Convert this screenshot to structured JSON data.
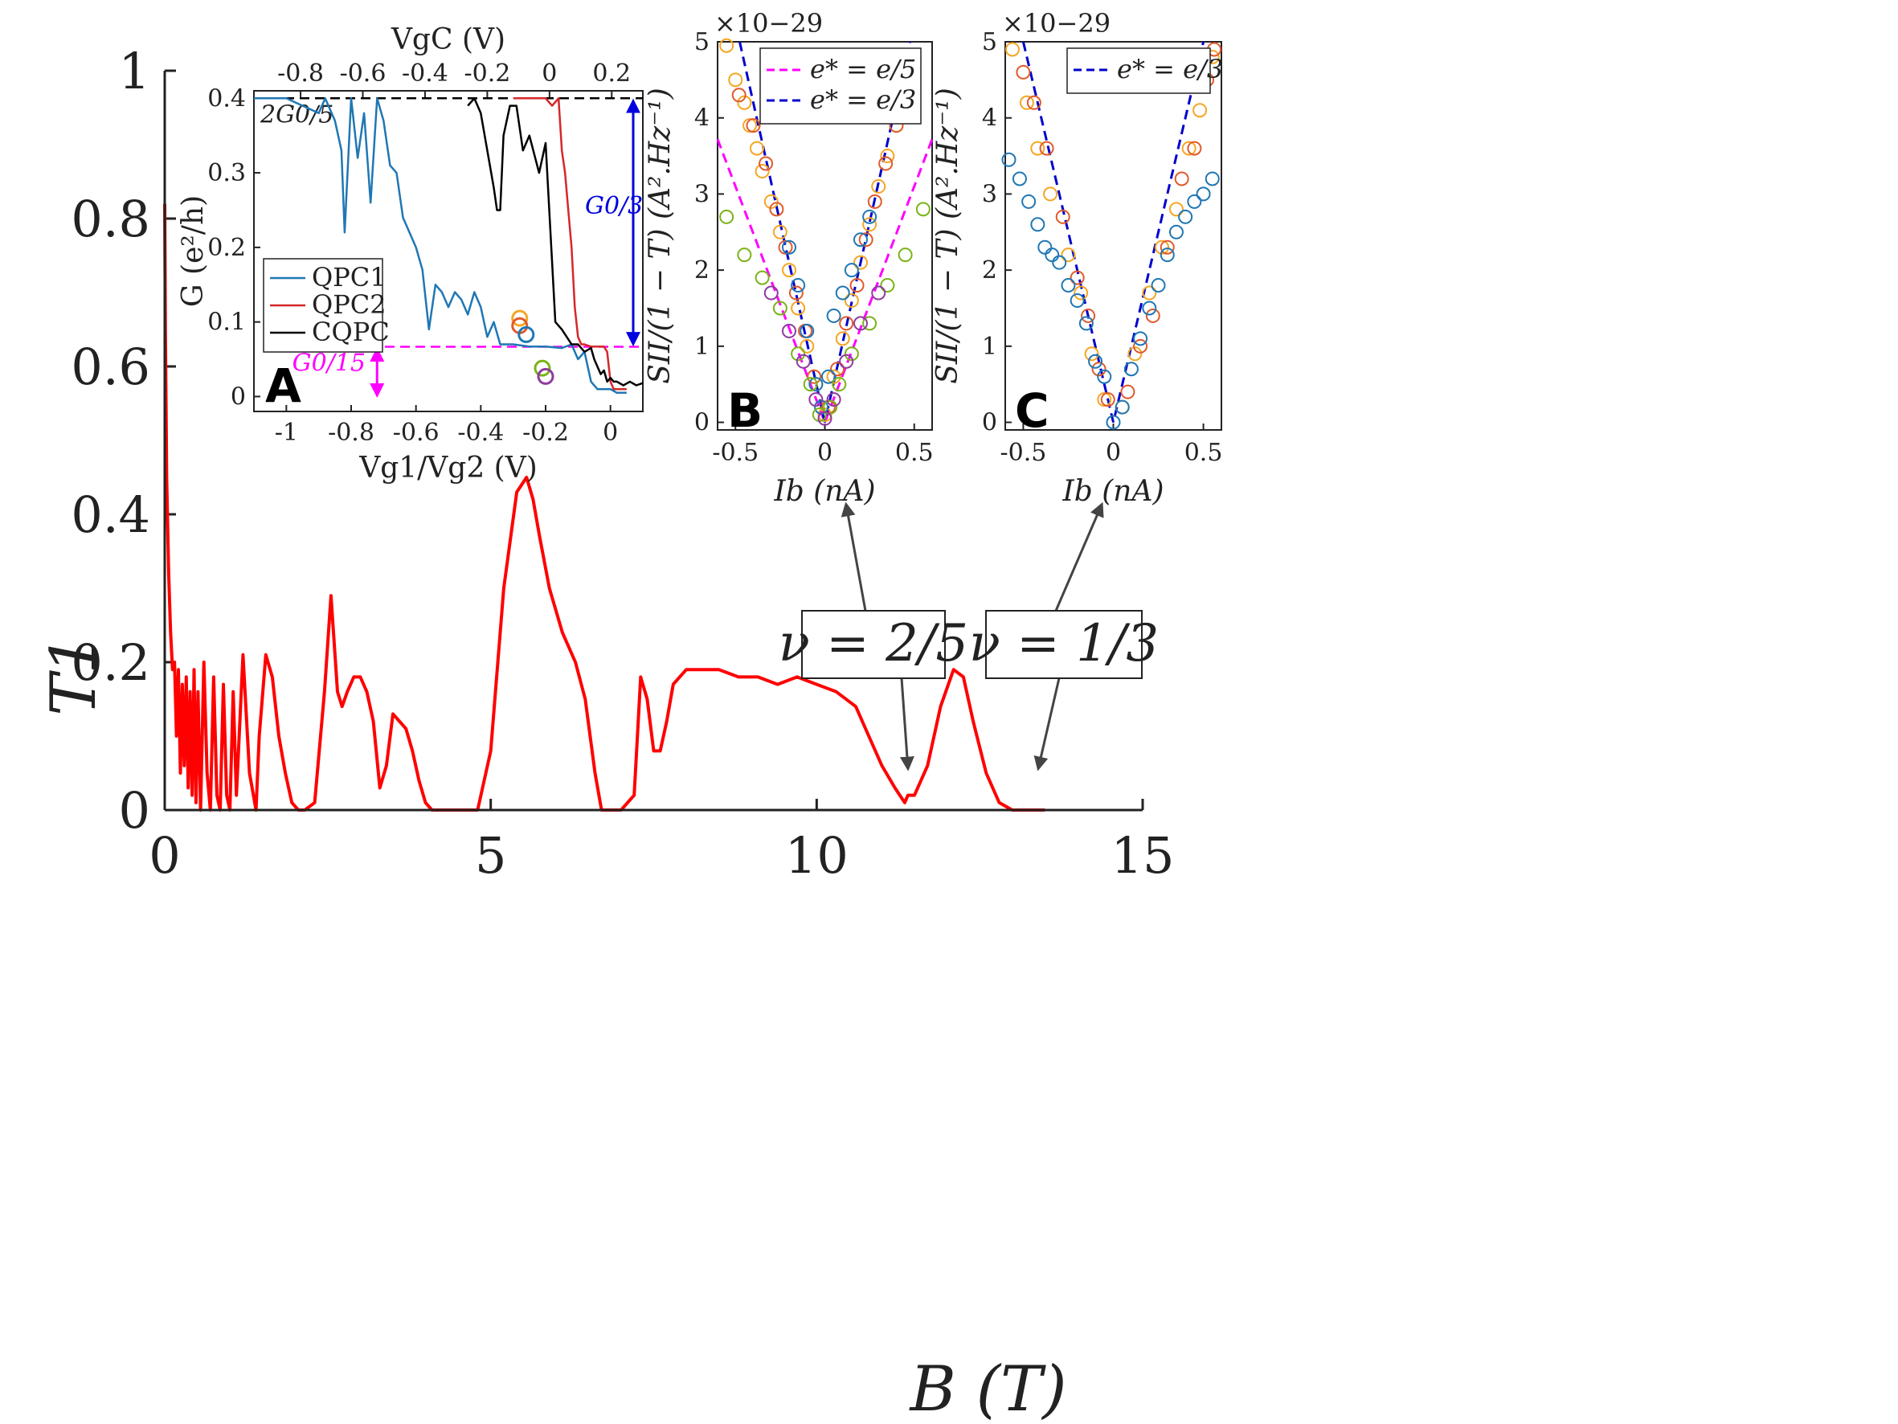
{
  "chart_data": [
    {
      "id": "main",
      "type": "line",
      "xlabel": "B (T)",
      "ylabel": "T1",
      "xlim": [
        0,
        15
      ],
      "ylim": [
        0,
        1
      ],
      "xticks": [
        0,
        5,
        10,
        15
      ],
      "yticks": [
        0,
        0.2,
        0.4,
        0.6,
        0.8,
        1
      ],
      "ytick_labels": [
        "0",
        "0.2",
        "0.4",
        "0.6",
        "0.8",
        "1"
      ],
      "series": [
        {
          "color": "#ff0000",
          "x": [
            0.0,
            0.01,
            0.03,
            0.06,
            0.09,
            0.12,
            0.15,
            0.18,
            0.21,
            0.24,
            0.27,
            0.3,
            0.33,
            0.36,
            0.39,
            0.42,
            0.45,
            0.48,
            0.51,
            0.55,
            0.6,
            0.65,
            0.7,
            0.75,
            0.8,
            0.85,
            0.9,
            0.95,
            1.0,
            1.05,
            1.1,
            1.2,
            1.3,
            1.4,
            1.45,
            1.55,
            1.65,
            1.75,
            1.85,
            1.95,
            2.05,
            2.15,
            2.3,
            2.45,
            2.55,
            2.65,
            2.72,
            2.8,
            2.9,
            3.0,
            3.1,
            3.2,
            3.3,
            3.4,
            3.5,
            3.6,
            3.7,
            3.8,
            3.9,
            4.0,
            4.1,
            4.2,
            4.5,
            4.8,
            5.0,
            5.2,
            5.4,
            5.55,
            5.65,
            5.75,
            5.9,
            6.1,
            6.3,
            6.45,
            6.6,
            6.7,
            6.8,
            7.0,
            7.2,
            7.3,
            7.4,
            7.5,
            7.6,
            7.7,
            7.8,
            8.0,
            8.2,
            8.5,
            8.8,
            9.1,
            9.4,
            9.7,
            10.0,
            10.3,
            10.6,
            10.8,
            11.0,
            11.2,
            11.35,
            11.4,
            11.5,
            11.7,
            11.9,
            12.1,
            12.25,
            12.4,
            12.6,
            12.8,
            13.0,
            13.2,
            13.4,
            13.5
          ],
          "y": [
            0.82,
            0.65,
            0.45,
            0.32,
            0.24,
            0.19,
            0.2,
            0.1,
            0.19,
            0.05,
            0.17,
            0.06,
            0.18,
            0.03,
            0.16,
            0.02,
            0.19,
            0.01,
            0.16,
            0.0,
            0.2,
            0.05,
            0.0,
            0.18,
            0.02,
            0.0,
            0.17,
            0.02,
            0.0,
            0.16,
            0.02,
            0.21,
            0.05,
            0.0,
            0.1,
            0.21,
            0.18,
            0.1,
            0.05,
            0.01,
            0.0,
            0.0,
            0.01,
            0.16,
            0.29,
            0.16,
            0.14,
            0.16,
            0.18,
            0.18,
            0.16,
            0.12,
            0.03,
            0.06,
            0.13,
            0.12,
            0.11,
            0.08,
            0.04,
            0.01,
            0.0,
            0.0,
            0.0,
            0.0,
            0.08,
            0.3,
            0.43,
            0.45,
            0.42,
            0.37,
            0.3,
            0.24,
            0.2,
            0.15,
            0.05,
            0.0,
            0.0,
            0.0,
            0.02,
            0.18,
            0.15,
            0.08,
            0.08,
            0.12,
            0.17,
            0.19,
            0.19,
            0.19,
            0.18,
            0.18,
            0.17,
            0.18,
            0.17,
            0.16,
            0.14,
            0.1,
            0.06,
            0.03,
            0.01,
            0.02,
            0.02,
            0.06,
            0.14,
            0.19,
            0.18,
            0.12,
            0.05,
            0.01,
            0.0,
            0.0,
            0.0,
            0.0
          ]
        }
      ],
      "annotations": [
        {
          "text": "ν = 2/5",
          "points_to_x": 11.4
        },
        {
          "text": "ν = 1/3",
          "points_to_x": 13.4
        }
      ]
    },
    {
      "id": "A",
      "type": "line",
      "panel_label": "A",
      "xlabel": "Vg1/Vg2 (V)",
      "x2label": "VgC (V)",
      "ylabel": "G (e²/h)",
      "xlim": [
        -1.1,
        0.1
      ],
      "x2lim": [
        -0.95,
        0.3
      ],
      "ylim": [
        -0.02,
        0.41
      ],
      "xticks": [
        -1,
        -0.8,
        -0.6,
        -0.4,
        -0.2,
        0
      ],
      "xtick_labels": [
        "-1",
        "-0.8",
        "-0.6",
        "-0.4",
        "-0.2",
        "0"
      ],
      "x2ticks": [
        -0.8,
        -0.6,
        -0.4,
        -0.2,
        0,
        0.2
      ],
      "x2tick_labels": [
        "-0.8",
        "-0.6",
        "-0.4",
        "-0.2",
        "0",
        "0.2"
      ],
      "yticks": [
        0,
        0.1,
        0.2,
        0.3,
        0.4
      ],
      "ytick_labels": [
        "0",
        "0.1",
        "0.2",
        "0.3",
        "0.4"
      ],
      "hlines": [
        {
          "y": 0.4,
          "color": "#000000",
          "label": "2G0/5"
        },
        {
          "y": 0.0667,
          "color": "#ff00ff",
          "label": "G0/15"
        }
      ],
      "arrow_labels": [
        {
          "text": "G0/3",
          "color": "#0000dd"
        },
        {
          "text": "G0/15",
          "color": "#ff00ff"
        }
      ],
      "legend_position": "middle-left",
      "series": [
        {
          "name": "QPC1",
          "color": "#1f77b4",
          "x": [
            -1.1,
            -1.0,
            -0.9,
            -0.88,
            -0.85,
            -0.83,
            -0.82,
            -0.8,
            -0.78,
            -0.76,
            -0.74,
            -0.72,
            -0.7,
            -0.68,
            -0.66,
            -0.64,
            -0.62,
            -0.6,
            -0.58,
            -0.56,
            -0.54,
            -0.52,
            -0.5,
            -0.48,
            -0.46,
            -0.44,
            -0.42,
            -0.4,
            -0.38,
            -0.36,
            -0.34,
            -0.3,
            -0.25,
            -0.2,
            -0.15,
            -0.12,
            -0.1,
            -0.08,
            -0.06,
            -0.04,
            -0.02,
            0.0,
            0.02,
            0.05
          ],
          "y": [
            0.4,
            0.4,
            0.38,
            0.4,
            0.37,
            0.33,
            0.22,
            0.4,
            0.32,
            0.38,
            0.26,
            0.4,
            0.37,
            0.31,
            0.3,
            0.24,
            0.22,
            0.2,
            0.17,
            0.09,
            0.15,
            0.14,
            0.12,
            0.14,
            0.13,
            0.11,
            0.14,
            0.12,
            0.08,
            0.1,
            0.07,
            0.07,
            0.067,
            0.067,
            0.065,
            0.07,
            0.05,
            0.06,
            0.02,
            0.01,
            0.01,
            0.01,
            0.005,
            0.005
          ]
        },
        {
          "name": "QPC2",
          "color": "#d62728",
          "x": [
            -0.3,
            -0.2,
            -0.18,
            -0.16,
            -0.15,
            -0.14,
            -0.13,
            -0.12,
            -0.11,
            -0.1,
            -0.09,
            -0.08,
            -0.06,
            -0.04,
            -0.02,
            -0.01,
            0.0,
            0.01,
            0.02,
            0.05
          ],
          "y": [
            0.4,
            0.4,
            0.39,
            0.4,
            0.33,
            0.3,
            0.25,
            0.2,
            0.12,
            0.08,
            0.07,
            0.07,
            0.067,
            0.067,
            0.067,
            0.06,
            0.02,
            0.01,
            0.01,
            0.01
          ]
        },
        {
          "name": "CQPC",
          "color": "#000000",
          "x": [
            -0.44,
            -0.42,
            -0.4,
            -0.38,
            -0.36,
            -0.35,
            -0.34,
            -0.33,
            -0.31,
            -0.29,
            -0.27,
            -0.25,
            -0.22,
            -0.2,
            -0.17,
            -0.15,
            -0.12,
            -0.1,
            -0.08,
            -0.06,
            -0.05,
            -0.04,
            -0.03,
            -0.02,
            -0.01,
            0.0,
            0.01,
            0.02,
            0.04,
            0.06,
            0.08,
            0.1
          ],
          "y": [
            0.39,
            0.4,
            0.38,
            0.33,
            0.28,
            0.25,
            0.25,
            0.35,
            0.39,
            0.39,
            0.33,
            0.35,
            0.3,
            0.34,
            0.1,
            0.09,
            0.07,
            0.07,
            0.06,
            0.065,
            0.05,
            0.04,
            0.03,
            0.035,
            0.02,
            0.025,
            0.02,
            0.02,
            0.015,
            0.02,
            0.015,
            0.018
          ]
        }
      ],
      "markers": [
        {
          "x": -0.28,
          "y": 0.105,
          "color": "#f5a623"
        },
        {
          "x": -0.28,
          "y": 0.095,
          "color": "#e05a2b"
        },
        {
          "x": -0.26,
          "y": 0.083,
          "color": "#1f77b4"
        },
        {
          "x": -0.21,
          "y": 0.038,
          "color": "#7ab317"
        },
        {
          "x": -0.2,
          "y": 0.027,
          "color": "#8e3aa0"
        }
      ]
    },
    {
      "id": "B",
      "type": "scatter",
      "panel_label": "B",
      "xlabel": "Ib (nA)",
      "ylabel": "SII/(1 − T) (A².Hz⁻¹)",
      "y_multiplier": "×10−29",
      "xlim": [
        -0.6,
        0.6
      ],
      "ylim": [
        -0.1,
        5
      ],
      "xticks": [
        -0.5,
        0,
        0.5
      ],
      "xtick_labels": [
        "-0.5",
        "0",
        "0.5"
      ],
      "yticks": [
        0,
        1,
        2,
        3,
        4,
        5
      ],
      "legend_position": "top-right",
      "fits": [
        {
          "name": "e* = e/5",
          "color": "#ff00ff",
          "slope": 6.2
        },
        {
          "name": "e* = e/3",
          "color": "#0000cc",
          "slope": 10.5
        }
      ],
      "series": [
        {
          "color": "#f5a623",
          "x": [
            -0.55,
            -0.5,
            -0.45,
            -0.42,
            -0.38,
            -0.35,
            -0.3,
            -0.25,
            -0.2,
            -0.15,
            -0.1,
            -0.05,
            0.0,
            0.05,
            0.1,
            0.15,
            0.2,
            0.25,
            0.3,
            0.35,
            0.4,
            0.45,
            0.5
          ],
          "y": [
            4.95,
            4.5,
            4.2,
            3.9,
            3.6,
            3.3,
            2.9,
            2.5,
            2.0,
            1.5,
            1.0,
            0.5,
            0.1,
            0.6,
            1.1,
            1.6,
            2.1,
            2.6,
            3.1,
            3.5,
            3.9,
            4.4,
            4.8
          ]
        },
        {
          "color": "#e05a2b",
          "x": [
            -0.48,
            -0.4,
            -0.33,
            -0.27,
            -0.22,
            -0.16,
            -0.11,
            -0.06,
            0.02,
            0.07,
            0.12,
            0.18,
            0.23,
            0.28,
            0.34,
            0.4,
            0.47
          ],
          "y": [
            4.3,
            3.9,
            3.4,
            2.8,
            2.3,
            1.7,
            1.2,
            0.6,
            0.2,
            0.7,
            1.3,
            1.8,
            2.4,
            2.9,
            3.4,
            3.9,
            4.6
          ]
        },
        {
          "color": "#1f77b4",
          "x": [
            -0.2,
            -0.15,
            -0.1,
            -0.05,
            -0.02,
            0.02,
            0.05,
            0.1,
            0.15,
            0.2,
            0.25
          ],
          "y": [
            2.3,
            1.8,
            1.2,
            0.5,
            0.2,
            0.6,
            1.4,
            1.7,
            2.0,
            2.4,
            2.7
          ]
        },
        {
          "color": "#7ab317",
          "x": [
            -0.55,
            -0.45,
            -0.35,
            -0.25,
            -0.15,
            -0.08,
            -0.03,
            0.03,
            0.08,
            0.15,
            0.25,
            0.35,
            0.45,
            0.55
          ],
          "y": [
            2.7,
            2.2,
            1.9,
            1.5,
            0.9,
            0.5,
            0.1,
            0.2,
            0.5,
            0.9,
            1.3,
            1.8,
            2.2,
            2.8
          ]
        },
        {
          "color": "#8e3aa0",
          "x": [
            -0.3,
            -0.2,
            -0.12,
            -0.05,
            0.0,
            0.05,
            0.12,
            0.2,
            0.3
          ],
          "y": [
            1.7,
            1.2,
            0.8,
            0.3,
            0.05,
            0.3,
            0.8,
            1.3,
            1.7
          ]
        }
      ]
    },
    {
      "id": "C",
      "type": "scatter",
      "panel_label": "C",
      "xlabel": "Ib (nA)",
      "ylabel": "SII/(1 − T) (A².Hz⁻¹)",
      "y_multiplier": "×10−29",
      "xlim": [
        -0.6,
        0.6
      ],
      "ylim": [
        -0.1,
        5
      ],
      "xticks": [
        -0.5,
        0,
        0.5
      ],
      "xtick_labels": [
        "-0.5",
        "0",
        "0.5"
      ],
      "yticks": [
        0,
        1,
        2,
        3,
        4,
        5
      ],
      "legend_position": "top-right",
      "fits": [
        {
          "name": "e* = e/3",
          "color": "#0000cc",
          "slope": 10.0
        }
      ],
      "series": [
        {
          "color": "#f5a623",
          "x": [
            -0.56,
            -0.48,
            -0.42,
            -0.35,
            -0.25,
            -0.18,
            -0.12,
            -0.05,
            0.05,
            0.12,
            0.2,
            0.27,
            0.35,
            0.42,
            0.48,
            0.55
          ],
          "y": [
            4.9,
            4.2,
            3.6,
            3.0,
            2.2,
            1.7,
            0.9,
            0.3,
            0.2,
            0.9,
            1.7,
            2.3,
            2.8,
            3.6,
            4.1,
            4.8
          ]
        },
        {
          "color": "#e05a2b",
          "x": [
            -0.5,
            -0.44,
            -0.37,
            -0.28,
            -0.2,
            -0.14,
            -0.08,
            -0.03,
            0.08,
            0.15,
            0.22,
            0.3,
            0.38,
            0.45,
            0.52,
            0.56
          ],
          "y": [
            4.6,
            4.2,
            3.6,
            2.7,
            1.9,
            1.4,
            0.7,
            0.3,
            0.4,
            1.0,
            1.4,
            2.3,
            3.2,
            3.6,
            4.5,
            4.9
          ]
        },
        {
          "color": "#1f77b4",
          "x": [
            -0.58,
            -0.52,
            -0.47,
            -0.42,
            -0.38,
            -0.34,
            -0.3,
            -0.25,
            -0.2,
            -0.15,
            -0.1,
            -0.05,
            0.0,
            0.05,
            0.1,
            0.15,
            0.2,
            0.25,
            0.3,
            0.35,
            0.4,
            0.45,
            0.5,
            0.55
          ],
          "y": [
            3.45,
            3.2,
            2.9,
            2.6,
            2.3,
            2.2,
            2.1,
            1.8,
            1.6,
            1.3,
            0.8,
            0.6,
            0.0,
            0.2,
            0.7,
            1.1,
            1.5,
            1.8,
            2.2,
            2.5,
            2.7,
            2.9,
            3.0,
            3.2
          ]
        }
      ]
    }
  ]
}
